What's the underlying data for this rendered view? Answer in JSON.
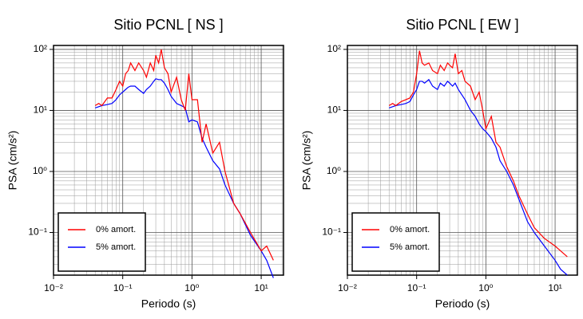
{
  "chart_data": [
    {
      "type": "line",
      "title": "Sitio PCNL [ NS ]",
      "xlabel": "Periodo (s)",
      "ylabel": "PSA (cm/s²)",
      "xscale": "log",
      "yscale": "log",
      "grid": true,
      "legend": "lower left",
      "xlim": [
        0.01,
        21
      ],
      "ylim": [
        0.02,
        116
      ],
      "xticks": [
        {
          "value": 0.01,
          "label": "10⁻²"
        },
        {
          "value": 0.1,
          "label": "10⁻¹"
        },
        {
          "value": 1,
          "label": "10⁰"
        },
        {
          "value": 10,
          "label": "10¹"
        }
      ],
      "yticks": [
        {
          "value": 0.1,
          "label": "10⁻¹"
        },
        {
          "value": 1,
          "label": "10⁰"
        },
        {
          "value": 10,
          "label": "10¹"
        },
        {
          "value": 100,
          "label": "10²"
        }
      ],
      "x": [
        0.04,
        0.045,
        0.05,
        0.06,
        0.07,
        0.08,
        0.09,
        0.1,
        0.11,
        0.12,
        0.13,
        0.15,
        0.17,
        0.2,
        0.22,
        0.25,
        0.28,
        0.3,
        0.33,
        0.36,
        0.4,
        0.45,
        0.5,
        0.6,
        0.7,
        0.8,
        0.9,
        1.0,
        1.2,
        1.4,
        1.6,
        2.0,
        2.5,
        3.0,
        4.0,
        5.0,
        7.0,
        10,
        12,
        15
      ],
      "series": [
        {
          "name": "0% amort.",
          "color": "#ff0000",
          "values": [
            12,
            13,
            12,
            16,
            16,
            22,
            30,
            25,
            40,
            45,
            60,
            45,
            60,
            45,
            35,
            60,
            45,
            80,
            60,
            100,
            50,
            40,
            20,
            35,
            15,
            10,
            40,
            15,
            15,
            3,
            6,
            2,
            3,
            1.0,
            0.3,
            0.2,
            0.1,
            0.05,
            0.06,
            0.035
          ]
        },
        {
          "name": "5% amort.",
          "color": "#0000ff",
          "values": [
            11,
            11.5,
            12,
            12.5,
            13,
            15,
            18,
            20,
            22,
            24,
            25,
            25,
            22,
            19,
            22,
            25,
            30,
            33,
            32,
            32,
            28,
            22,
            17,
            13,
            12,
            11,
            6.5,
            7,
            6.5,
            3.5,
            2.5,
            1.5,
            1.1,
            0.6,
            0.3,
            0.2,
            0.09,
            0.05,
            0.035,
            0.018
          ]
        }
      ]
    },
    {
      "type": "line",
      "title": "Sitio PCNL [ EW ]",
      "xlabel": "Periodo (s)",
      "ylabel": "PSA (cm/s²)",
      "xscale": "log",
      "yscale": "log",
      "grid": true,
      "legend": "lower left",
      "xlim": [
        0.01,
        21
      ],
      "ylim": [
        0.02,
        116
      ],
      "xticks": [
        {
          "value": 0.01,
          "label": "10⁻²"
        },
        {
          "value": 0.1,
          "label": "10⁻¹"
        },
        {
          "value": 1,
          "label": "10⁰"
        },
        {
          "value": 10,
          "label": "10¹"
        }
      ],
      "yticks": [
        {
          "value": 0.1,
          "label": "10⁻¹"
        },
        {
          "value": 1,
          "label": "10⁰"
        },
        {
          "value": 10,
          "label": "10¹"
        },
        {
          "value": 100,
          "label": "10²"
        }
      ],
      "x": [
        0.04,
        0.045,
        0.05,
        0.06,
        0.07,
        0.08,
        0.09,
        0.1,
        0.11,
        0.12,
        0.13,
        0.15,
        0.17,
        0.2,
        0.22,
        0.25,
        0.28,
        0.3,
        0.33,
        0.36,
        0.4,
        0.45,
        0.5,
        0.6,
        0.7,
        0.8,
        0.9,
        1.0,
        1.2,
        1.4,
        1.6,
        2.0,
        2.5,
        3.0,
        4.0,
        5.0,
        7.0,
        10,
        12,
        15
      ],
      "series": [
        {
          "name": "0% amort.",
          "color": "#ff0000",
          "values": [
            12,
            13,
            12,
            14,
            15,
            16,
            20,
            40,
            95,
            60,
            55,
            60,
            45,
            40,
            55,
            45,
            60,
            55,
            50,
            85,
            40,
            45,
            30,
            25,
            15,
            20,
            10,
            5,
            8,
            3,
            2.5,
            1.2,
            0.7,
            0.4,
            0.2,
            0.12,
            0.08,
            0.06,
            0.05,
            0.04
          ]
        },
        {
          "name": "5% amort.",
          "color": "#0000ff",
          "values": [
            11,
            11.5,
            12,
            12.5,
            13,
            14,
            18,
            22,
            30,
            30,
            28,
            32,
            25,
            22,
            28,
            25,
            30,
            28,
            25,
            28,
            22,
            18,
            15,
            10,
            8,
            6,
            5,
            4.5,
            3.5,
            2.5,
            1.5,
            1.0,
            0.6,
            0.35,
            0.15,
            0.1,
            0.06,
            0.035,
            0.025,
            0.02
          ]
        }
      ]
    }
  ]
}
